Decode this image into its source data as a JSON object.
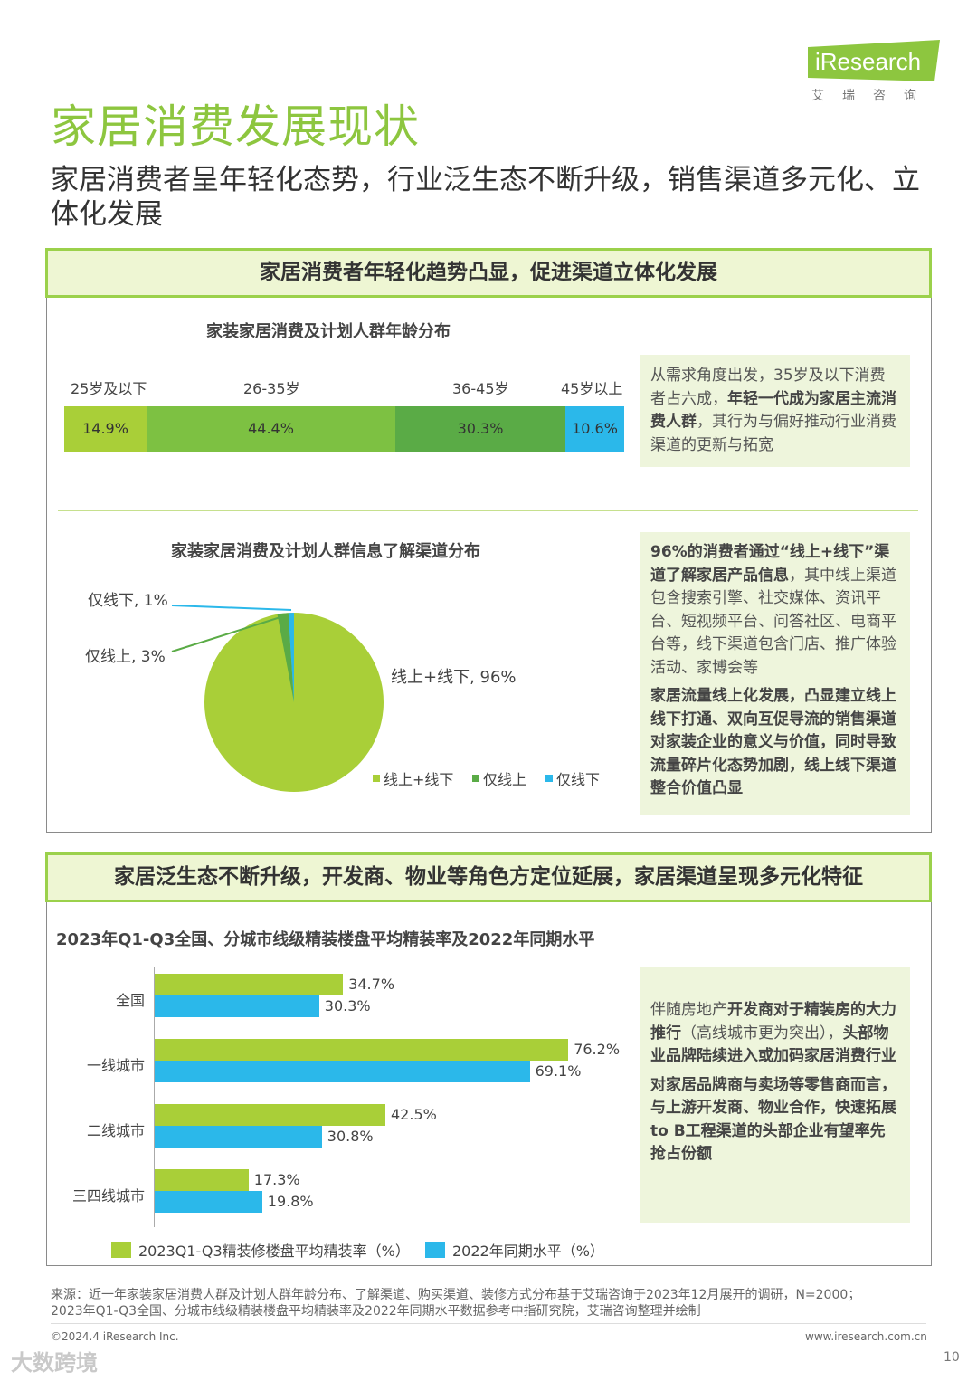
{
  "brand": {
    "logo_text": "iResearch",
    "cn": "艾瑞咨询",
    "accent": "#8dc63f"
  },
  "page": {
    "title": "家居消费发展现状",
    "subtitle": "家居消费者呈年轻化态势，行业泛生态不断升级，销售渠道多元化、立体化发展",
    "page_number": "10"
  },
  "section1": {
    "header": "家居消费者年轻化趋势凸显，促进渠道立体化发展",
    "age_chart": {
      "title": "家装家居消费及计划人群年龄分布",
      "segments": [
        {
          "label": "25岁及以下",
          "value": "14.9%",
          "color": "#a9cf38"
        },
        {
          "label": "26-35岁",
          "value": "44.4%",
          "color": "#7dc142"
        },
        {
          "label": "36-45岁",
          "value": "30.3%",
          "color": "#5aab46"
        },
        {
          "label": "45岁以上",
          "value": "10.6%",
          "color": "#2bb8ea"
        }
      ]
    },
    "age_note": {
      "t1": "从需求角度出发，35岁及以下消费者占六成，",
      "b1": "年轻一代成为家居主流消费人群",
      "t2": "，其行为与偏好推动行业消费渠道的更新与拓宽"
    },
    "pie_chart": {
      "title": "家装家居消费及计划人群信息了解渠道分布",
      "labels": [
        "线上+线下, 96%",
        "仅线上, 3%",
        "仅线下, 1%"
      ],
      "legend": [
        "线上+线下",
        "仅线上",
        "仅线下"
      ]
    },
    "pie_note": {
      "b1": "96%的消费者通过“线上+线下”渠道了解家居产品信息",
      "t1": "，其中线上渠道包含搜索引擎、社交媒体、资讯平台、短视频平台、问答社区、电商平台等，线下渠道包含门店、推广体验活动、家博会等",
      "b2": "家居流量线上化发展，凸显建立线上线下打通、双向互促导流的销售渠道对家装企业的意义与价值，同时导致流量碎片化态势加剧，线上线下渠道整合价值凸显"
    }
  },
  "section2": {
    "header": "家居泛生态不断升级，开发商、物业等角色方定位延展，家居渠道呈现多元化特征",
    "bar_title": "2023年Q1-Q3全国、分城市线级精装楼盘平均精装率及2022年同期水平",
    "note": {
      "t1": "伴随房地产",
      "b1": "开发商对于精装房的大力推行",
      "t2": "（高线城市更为突出），",
      "b2": "头部物业品牌陆续进入或加码家居消费行业",
      "b3": "对家居品牌商与卖场等零售商而言，与上游开发商、物业合作，快速拓展to B工程渠道的头部企业有望率先抢占份额"
    }
  },
  "chart_data": [
    {
      "type": "bar",
      "title": "家装家居消费及计划人群年龄分布",
      "categories": [
        "25岁及以下",
        "26-35岁",
        "36-45岁",
        "45岁以上"
      ],
      "values": [
        14.9,
        44.4,
        30.3,
        10.6
      ]
    },
    {
      "type": "pie",
      "title": "家装家居消费及计划人群信息了解渠道分布",
      "categories": [
        "线上+线下",
        "仅线上",
        "仅线下"
      ],
      "values": [
        96,
        3,
        1
      ],
      "colors": [
        "#a9cf38",
        "#5aab46",
        "#2bb8ea"
      ],
      "legend": "bottom"
    },
    {
      "type": "bar",
      "orientation": "horizontal",
      "title": "2023年Q1-Q3全国、分城市线级精装楼盘平均精装率及2022年同期水平",
      "categories": [
        "全国",
        "一线城市",
        "二线城市",
        "三四线城市"
      ],
      "series": [
        {
          "name": "2023Q1-Q3精装修楼盘平均精装率（%）",
          "values": [
            34.7,
            76.2,
            42.5,
            17.3
          ],
          "color": "#a9cf38"
        },
        {
          "name": "2022年同期水平（%）",
          "values": [
            30.3,
            69.1,
            30.8,
            19.8
          ],
          "color": "#2bb8ea"
        }
      ],
      "legend": "bottom-left"
    }
  ],
  "footer": {
    "source_line1": "来源：近一年家装家居消费人群及计划人群年龄分布、了解渠道、购买渠道、装修方式分布基于艾瑞咨询于2023年12月展开的调研，N=2000；",
    "source_line2": "2023年Q1-Q3全国、分城市线级精装楼盘平均精装率及2022年同期水平数据参考中指研究院，艾瑞咨询整理并绘制",
    "copyright": "©2024.4 iResearch Inc.",
    "website": "www.iresearch.com.cn",
    "watermark": "大数跨境"
  }
}
